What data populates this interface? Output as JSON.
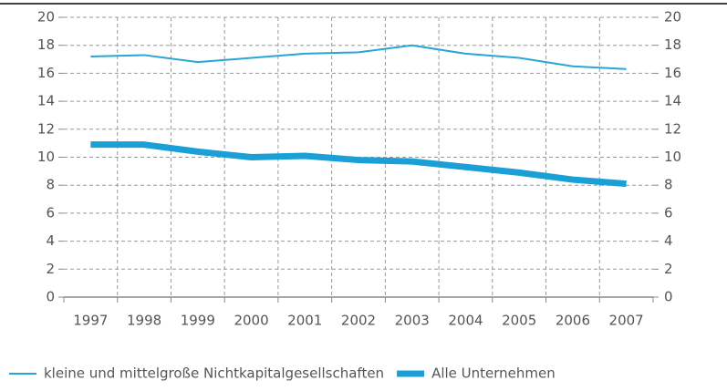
{
  "chart_data": {
    "type": "line",
    "categories": [
      "1997",
      "1998",
      "1999",
      "2000",
      "2001",
      "2002",
      "2003",
      "2004",
      "2005",
      "2006",
      "2007"
    ],
    "series": [
      {
        "name": "kleine und mittelgroße Nichtkapitalgesellschaften",
        "color": "#29a6d6",
        "values": [
          17.2,
          17.3,
          16.8,
          17.1,
          17.4,
          17.5,
          18.0,
          17.4,
          17.1,
          16.5,
          16.3
        ]
      },
      {
        "name": "Alle Unternehmen",
        "color": "#1a9fd6",
        "values": [
          10.9,
          10.9,
          10.4,
          10.0,
          10.1,
          9.8,
          9.7,
          9.3,
          8.9,
          8.4,
          8.1
        ]
      }
    ],
    "ylim": [
      0,
      20
    ],
    "yticks": [
      0,
      2,
      4,
      6,
      8,
      10,
      12,
      14,
      16,
      18,
      20
    ],
    "y2lim": [
      0,
      20
    ],
    "y2ticks": [
      0,
      2,
      4,
      6,
      8,
      10,
      12,
      14,
      16,
      18,
      20
    ],
    "grid": true
  }
}
